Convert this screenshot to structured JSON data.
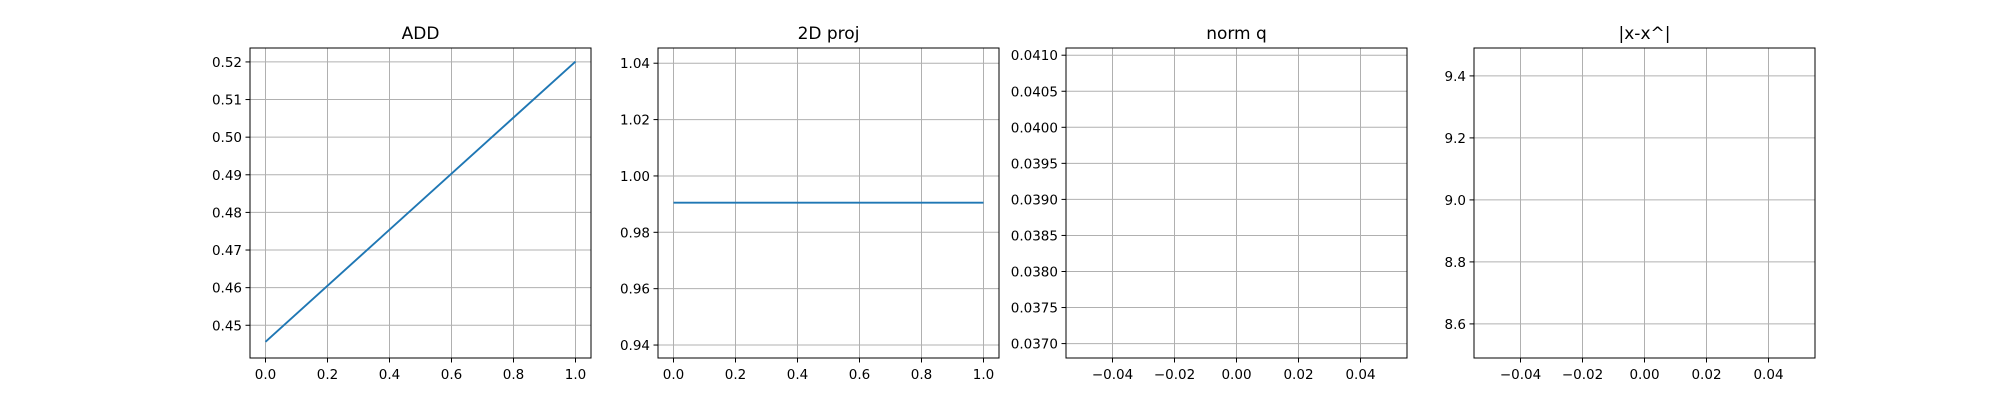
{
  "chart_data": [
    {
      "type": "line",
      "title": "ADD",
      "xlabel": "",
      "ylabel": "",
      "xlim": [
        -0.05,
        1.05
      ],
      "ylim": [
        0.4413,
        0.5237
      ],
      "xticks": [
        0.0,
        0.2,
        0.4,
        0.6,
        0.8,
        1.0
      ],
      "xtick_labels": [
        "0.0",
        "0.2",
        "0.4",
        "0.6",
        "0.8",
        "1.0"
      ],
      "yticks": [
        0.45,
        0.46,
        0.47,
        0.48,
        0.49,
        0.5,
        0.51,
        0.52
      ],
      "ytick_labels": [
        "0.45",
        "0.46",
        "0.47",
        "0.48",
        "0.49",
        "0.50",
        "0.51",
        "0.52"
      ],
      "grid": true,
      "series": [
        {
          "x": [
            0.0,
            1.0
          ],
          "y": [
            0.4456,
            0.5201
          ]
        }
      ]
    },
    {
      "type": "line",
      "title": "2D proj",
      "xlabel": "",
      "ylabel": "",
      "xlim": [
        -0.05,
        1.05
      ],
      "ylim": [
        0.9354,
        1.0454
      ],
      "xticks": [
        0.0,
        0.2,
        0.4,
        0.6,
        0.8,
        1.0
      ],
      "xtick_labels": [
        "0.0",
        "0.2",
        "0.4",
        "0.6",
        "0.8",
        "1.0"
      ],
      "yticks": [
        0.94,
        0.96,
        0.98,
        1.0,
        1.02,
        1.04
      ],
      "ytick_labels": [
        "0.94",
        "0.96",
        "0.98",
        "1.00",
        "1.02",
        "1.04"
      ],
      "grid": true,
      "series": [
        {
          "x": [
            0.0,
            1.0
          ],
          "y": [
            0.9905,
            0.9905
          ]
        }
      ]
    },
    {
      "type": "line",
      "title": "norm q",
      "xlabel": "",
      "ylabel": "",
      "xlim": [
        -0.055,
        0.055
      ],
      "ylim": [
        0.0368,
        0.0411
      ],
      "xticks": [
        -0.04,
        -0.02,
        0.0,
        0.02,
        0.04
      ],
      "xtick_labels": [
        "−0.04",
        "−0.02",
        "0.00",
        "0.02",
        "0.04"
      ],
      "yticks": [
        0.037,
        0.0375,
        0.038,
        0.0385,
        0.039,
        0.0395,
        0.04,
        0.0405,
        0.041
      ],
      "ytick_labels": [
        "0.0370",
        "0.0375",
        "0.0380",
        "0.0385",
        "0.0390",
        "0.0395",
        "0.0400",
        "0.0405",
        "0.0410"
      ],
      "grid": true,
      "series": []
    },
    {
      "type": "line",
      "title": "|x-x^|",
      "xlabel": "",
      "ylabel": "",
      "xlim": [
        -0.055,
        0.055
      ],
      "ylim": [
        8.49,
        9.49
      ],
      "xticks": [
        -0.04,
        -0.02,
        0.0,
        0.02,
        0.04
      ],
      "xtick_labels": [
        "−0.04",
        "−0.02",
        "0.00",
        "0.02",
        "0.04"
      ],
      "yticks": [
        8.6,
        8.8,
        9.0,
        9.2,
        9.4
      ],
      "ytick_labels": [
        "8.6",
        "8.8",
        "9.0",
        "9.2",
        "9.4"
      ],
      "grid": true,
      "series": []
    }
  ],
  "colors": {
    "line": "#1f77b4",
    "grid": "#b0b0b0",
    "axes": "#000000"
  }
}
